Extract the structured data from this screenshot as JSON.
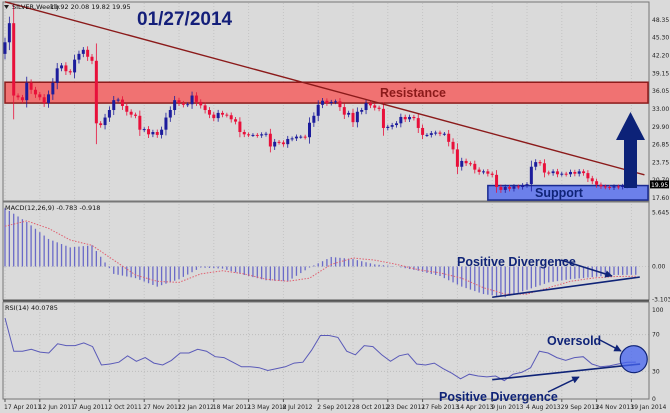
{
  "title": "01/27/2014",
  "header": {
    "symbol": "SILVER,Weekly",
    "ohlc": "19.92 20.08 19.82 19.95"
  },
  "annotations": {
    "resistance": "Resistance",
    "support": "Support",
    "macd_divergence": "Positive Divergence",
    "rsi_divergence": "Positive Divergence",
    "oversold": "Oversold"
  },
  "colors": {
    "up_candle": "#1c1c9c",
    "down_candle": "#e8103a",
    "trendline": "#8b1a1a",
    "resistance_fill": "#f07272",
    "support_fill": "#6c80ea",
    "annotation": "#0f2377",
    "macd_histogram": "#6a6ac8",
    "macd_signal": "#e06070",
    "rsi_line": "#5a5ab8"
  },
  "chart_data": [
    {
      "type": "candlestick",
      "label": "SILVER,Weekly",
      "x_ticks": [
        "17 Apr 2011",
        "12 Jun 2011",
        "7 Aug 2011",
        "2 Oct 2011",
        "27 Nov 2011",
        "22 Jan 2012",
        "18 Mar 2012",
        "13 May 2012",
        "8 Jul 2012",
        "2 Sep 2012",
        "28 Oct 2012",
        "23 Dec 2012",
        "17 Feb 2013",
        "14 Apr 2013",
        "9 Jun 2013",
        "4 Aug 2013",
        "29 Sep 2013",
        "24 Nov 2013",
        "19 Jan 2014"
      ],
      "y_ticks": [
        "48.35",
        "45.30",
        "42.20",
        "39.15",
        "36.05",
        "33.00",
        "29.90",
        "26.85",
        "23.75",
        "20.70",
        "17.60"
      ],
      "ylim": [
        17.6,
        48.35
      ],
      "first_week": "17 Apr 2011",
      "last_ohlc": [
        19.92,
        20.08,
        19.82,
        19.95
      ],
      "last_price_label": "19.95",
      "close": [
        44.5,
        47.8,
        35.3,
        35.0,
        34.5,
        37.5,
        36.3,
        35.5,
        35.0,
        34.0,
        35.5,
        37.5,
        40.0,
        40.5,
        39.5,
        39.3,
        41.5,
        42.5,
        43.2,
        42.0,
        41.3,
        30.5,
        30.2,
        31.5,
        32.8,
        34.5,
        34.6,
        33.5,
        32.5,
        32.0,
        31.8,
        29.4,
        29.5,
        28.6,
        29.0,
        28.5,
        29.4,
        31.5,
        32.8,
        34.5,
        34.0,
        33.7,
        33.8,
        35.3,
        34.2,
        33.6,
        32.8,
        32.0,
        31.4,
        32.3,
        32.0,
        31.9,
        31.2,
        30.8,
        29.0,
        28.6,
        28.5,
        28.5,
        28.4,
        28.6,
        28.7,
        26.5,
        27.3,
        27.2,
        26.9,
        27.8,
        27.9,
        28.2,
        28.2,
        28.1,
        30.6,
        31.8,
        33.7,
        34.4,
        34.0,
        34.2,
        34.3,
        33.3,
        32.0,
        32.3,
        30.7,
        32.5,
        32.8,
        34.0,
        33.6,
        33.2,
        33.0,
        29.7,
        29.9,
        30.2,
        30.5,
        31.6,
        31.2,
        31.6,
        31.4,
        29.7,
        28.5,
        28.5,
        28.8,
        28.9,
        28.7,
        28.7,
        27.3,
        26.0,
        23.0,
        24.0,
        23.6,
        23.5,
        22.5,
        22.1,
        22.2,
        21.8,
        21.6,
        19.5,
        19.0,
        19.5,
        19.2,
        19.6,
        19.5,
        19.8,
        20.0,
        23.0,
        23.8,
        23.6,
        22.0,
        21.9,
        22.2,
        21.7,
        21.8,
        21.7,
        22.1,
        21.8,
        22.2,
        21.9,
        21.0,
        20.5,
        19.9,
        19.6,
        19.5,
        19.4,
        19.6,
        19.5,
        19.7,
        19.9,
        20.1,
        19.95
      ],
      "resistance_zone": [
        34.0,
        37.6
      ],
      "support_zone": [
        17.25,
        19.75
      ],
      "support_from": "2 Jun 2013",
      "trendline": {
        "from": [
          "17 Apr 2011",
          51.5
        ],
        "to": [
          "9 Feb 2014",
          21.6
        ]
      }
    },
    {
      "type": "bar",
      "label": "MACD(12,26,9)",
      "values_label": "-0.783 -0.918",
      "y_ticks": [
        "5.645",
        "0.00",
        "-3.103"
      ],
      "ylim": [
        -3.103,
        5.645
      ],
      "macd": [
        5.5,
        4.2,
        2.6,
        1.8,
        2.0,
        -0.7,
        -1.1,
        -1.9,
        -1.2,
        -0.1,
        -0.2,
        -0.8,
        -1.3,
        -1.4,
        -0.1,
        0.9,
        0.7,
        0.2,
        0.0,
        -0.4,
        -0.9,
        -1.9,
        -2.6,
        -2.9,
        -2.2,
        -1.5,
        -1.2,
        -1.0,
        -0.8,
        -0.783
      ],
      "signal": [
        3.8,
        4.3,
        3.6,
        2.5,
        2.0,
        0.6,
        -0.8,
        -1.4,
        -1.5,
        -0.7,
        -0.4,
        -0.7,
        -1.2,
        -1.4,
        -1.1,
        0.2,
        0.8,
        0.6,
        0.2,
        -0.3,
        -0.6,
        -1.1,
        -2.0,
        -2.6,
        -2.6,
        -2.0,
        -1.4,
        -1.1,
        -0.95,
        -0.918
      ],
      "divergence": {
        "from": [
          "9 Jun 2013",
          -2.9
        ],
        "to": [
          "26 Jan 2014",
          -1.0
        ]
      }
    },
    {
      "type": "line",
      "label": "RSI(14)",
      "value_label": "40.0785",
      "y_ticks": [
        "100",
        "70",
        "30",
        "0"
      ],
      "ylim": [
        0,
        100
      ],
      "rsi": [
        88,
        52,
        52,
        54,
        51,
        50,
        60,
        58,
        58,
        61,
        57,
        37,
        38,
        40,
        47,
        41,
        45,
        39,
        37,
        42,
        50,
        50,
        54,
        52,
        46,
        45,
        40,
        35,
        35,
        34,
        31,
        33,
        35,
        39,
        40,
        53,
        69,
        69,
        67,
        52,
        48,
        58,
        57,
        48,
        41,
        47,
        49,
        38,
        37,
        39,
        33,
        28,
        22,
        27,
        25,
        24,
        25,
        20,
        27,
        29,
        34,
        52,
        50,
        45,
        42,
        45,
        46,
        38,
        35,
        36,
        38,
        40,
        40.08
      ],
      "divergence": {
        "from": [
          "9 Jun 2013",
          21
        ],
        "to": [
          "2 Feb 2014",
          38
        ]
      },
      "oversold_marker": [
        "26 Jan 2014",
        40
      ]
    }
  ]
}
